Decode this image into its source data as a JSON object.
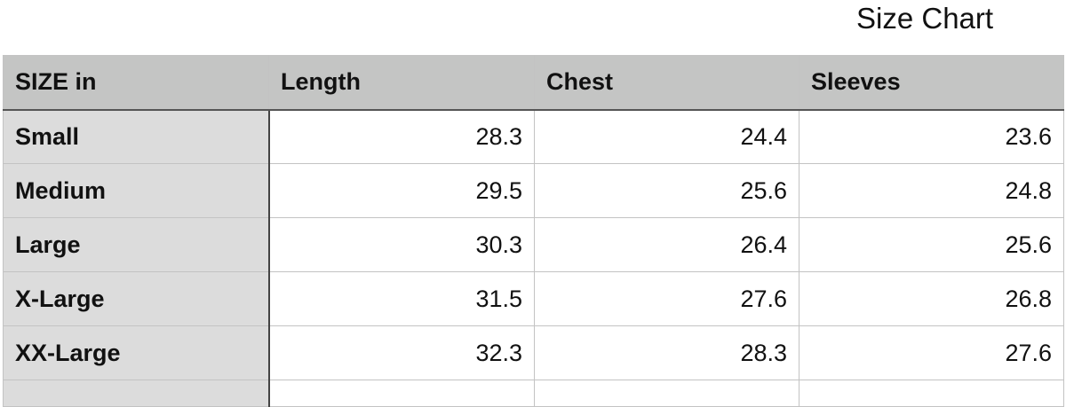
{
  "title": "Size Chart",
  "table": {
    "headers": [
      "SIZE in",
      "Length",
      "Chest",
      "Sleeves"
    ],
    "rows": [
      {
        "size": "Small",
        "length": "28.3",
        "chest": "24.4",
        "sleeves": "23.6"
      },
      {
        "size": "Medium",
        "length": "29.5",
        "chest": "25.6",
        "sleeves": "24.8"
      },
      {
        "size": "Large",
        "length": "30.3",
        "chest": "26.4",
        "sleeves": "25.6"
      },
      {
        "size": "X-Large",
        "length": "31.5",
        "chest": "27.6",
        "sleeves": "26.8"
      },
      {
        "size": "XX-Large",
        "length": "32.3",
        "chest": "28.3",
        "sleeves": "27.6"
      }
    ]
  }
}
